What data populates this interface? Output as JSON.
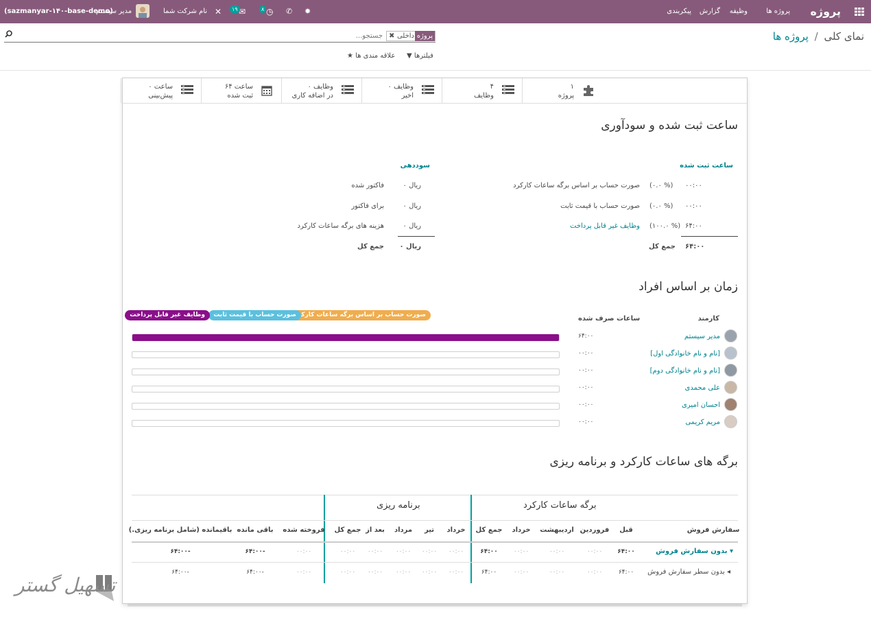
{
  "topbar": {
    "app_title": "پروژه",
    "menu": [
      "پروژه ها",
      "وظیفه",
      "گزارش",
      "پیکربندی"
    ],
    "company": "نام شرکت شما",
    "user": "مدیر سیستم",
    "db_name": "(sazmanyar-۱۴۰-base-demo)",
    "activity_count": "۸",
    "message_count": "۱۹"
  },
  "breadcrumb": {
    "parent": "پروژه ها",
    "separator": "/",
    "current": "نمای کلی"
  },
  "search": {
    "facet_label": "پروژه",
    "facet_value": "داخلی",
    "placeholder": "جستجو..."
  },
  "filters": {
    "filters_label": "فیلترها",
    "favorites_label": "علاقه مندی ها"
  },
  "stats": [
    {
      "line1": "۱",
      "line2": "پروژه",
      "icon": "puzzle-icon"
    },
    {
      "line1": "۴",
      "line2": "وظایف",
      "icon": "tasks-icon"
    },
    {
      "line1": "۰ وظایف",
      "line2": "اخیر",
      "icon": "tasks-icon"
    },
    {
      "line1": "۰ وظایف",
      "line2": "در اضافه کاری",
      "icon": "tasks-icon"
    },
    {
      "line1": "۶۴ ساعت",
      "line2": "ثبت شده",
      "icon": "calendar-icon"
    },
    {
      "line1": "۰ ساعت",
      "line2": "پیش‌بینی",
      "icon": "tasks-icon"
    }
  ],
  "profitability": {
    "section_title": "ساعت ثبت شده و سودآوری",
    "hours_header": "ساعت ثبت شده",
    "hours_rows": [
      {
        "value": "۰۰:۰۰",
        "percent": "(۰.۰ %)",
        "label": "صورت حساب بر اساس برگه ساعات کارکرد"
      },
      {
        "value": "۰۰:۰۰",
        "percent": "(۰.۰ %)",
        "label": "صورت حساب با قیمت ثابت"
      },
      {
        "value": "۶۴:۰۰",
        "percent": "(۱۰۰.۰ %)",
        "label": "وظایف غیر قابل پرداخت"
      }
    ],
    "hours_total_value": "۶۴:۰۰",
    "hours_total_label": "جمع کل",
    "profit_header": "سوددهی",
    "profit_rows": [
      {
        "value": "۰ ریال",
        "label": "فاکتور شده"
      },
      {
        "value": "۰ ریال",
        "label": "برای فاکتور"
      },
      {
        "value": "۰ ریال",
        "label": "هزینه های برگه ساعات کارکرد"
      }
    ],
    "profit_total_value": "۰ ریال",
    "profit_total_label": "جمع کل"
  },
  "people": {
    "section_title": "زمان بر اساس افراد",
    "col_employee": "کارمند",
    "col_hours": "ساعات صرف شده",
    "legend": [
      {
        "label": "صورت حساب بر اساس برگه ساعات کارکرد",
        "color": "#f0ad4e"
      },
      {
        "label": "صورت حساب با قیمت ثابت",
        "color": "#5bc0de"
      },
      {
        "label": "وظایف غیر قابل پرداخت",
        "color": "#8a0f8a"
      }
    ],
    "rows": [
      {
        "name": "مدیر سیستم",
        "hours": "۶۴:۰۰",
        "fill": 1.0
      },
      {
        "name": "[نام و نام خانوادگی اول]",
        "hours": "۰۰:۰۰",
        "fill": 0
      },
      {
        "name": "[نام و نام خانوادگی دوم]",
        "hours": "۰۰:۰۰",
        "fill": 0
      },
      {
        "name": "علی محمدی",
        "hours": "۰۰:۰۰",
        "fill": 0
      },
      {
        "name": "احسان امیری",
        "hours": "۰۰:۰۰",
        "fill": 0
      },
      {
        "name": "مریم کریمی",
        "hours": "۰۰:۰۰",
        "fill": 0
      }
    ]
  },
  "planning": {
    "section_title": "برگه های ساعات کارکرد و برنامه ریزی",
    "group_timesheet": "برگه ساعات کارکرد",
    "group_planning": "برنامه ریزی",
    "columns": [
      "سفارش فروش",
      "قبل",
      "فروردین",
      "اردیبهشت",
      "خرداد",
      "جمع کل",
      "خرداد",
      "تیر",
      "مرداد",
      "بعد از",
      "جمع کل",
      "فروخته شده",
      "باقی مانده",
      "باقیمانده (شامل برنامه ریزی.)"
    ],
    "rows": [
      {
        "label": "بدون سفارش فروش",
        "values": [
          "۶۴:۰۰",
          "۰۰:۰۰",
          "۰۰:۰۰",
          "۰۰:۰۰",
          "۶۴:۰۰",
          "۰۰:۰۰",
          "۰۰:۰۰",
          "۰۰:۰۰",
          "۰۰:۰۰",
          "۰۰:۰۰",
          "۰۰:۰۰",
          "۶۴:۰۰-",
          "۶۴:۰۰-"
        ]
      },
      {
        "label": "بدون سطر سفارش فروش",
        "values": [
          "۶۴:۰۰",
          "۰۰:۰۰",
          "۰۰:۰۰",
          "۰۰:۰۰",
          "۶۴:۰۰",
          "۰۰:۰۰",
          "۰۰:۰۰",
          "۰۰:۰۰",
          "۰۰:۰۰",
          "۰۰:۰۰",
          "۰۰:۰۰",
          "۶۴:۰۰-",
          "۶۴:۰۰-"
        ]
      }
    ]
  },
  "watermark": {
    "text": "تسهیل گستر"
  }
}
